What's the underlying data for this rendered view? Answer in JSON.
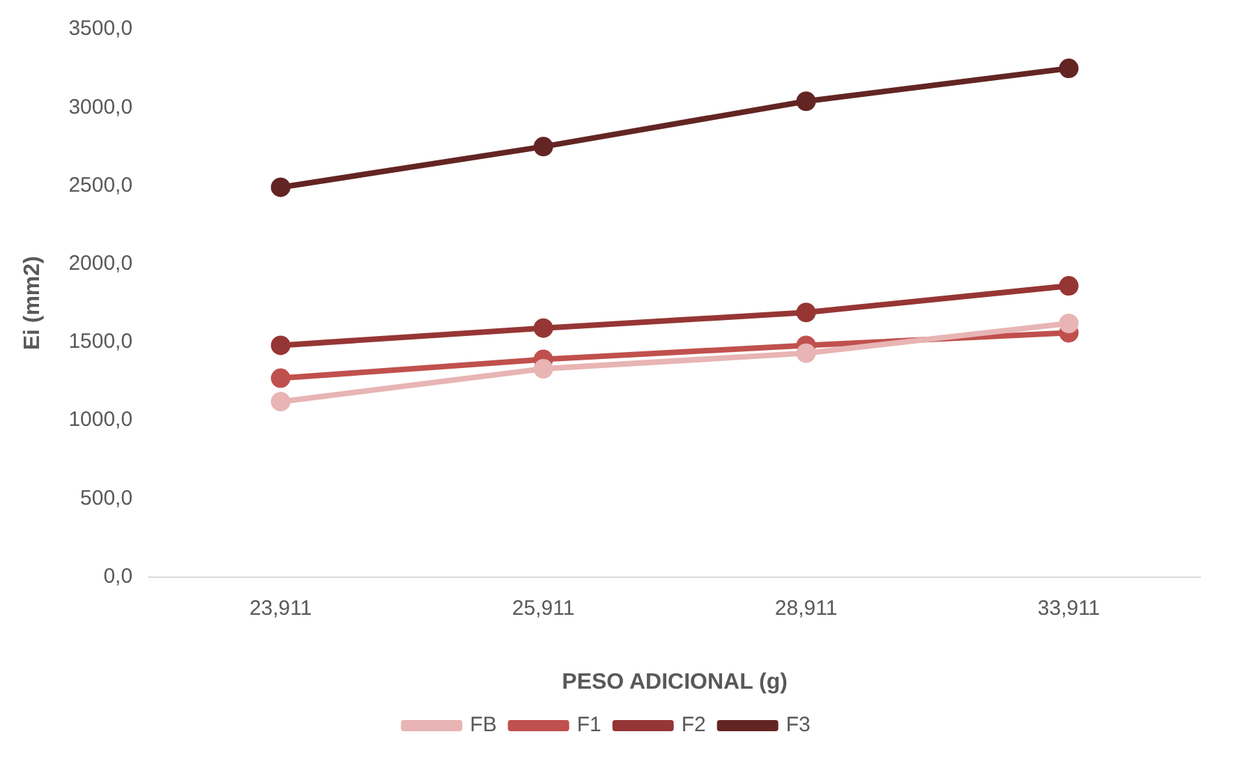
{
  "chart_data": {
    "type": "line",
    "xlabel": "PESO ADICIONAL (g)",
    "ylabel": "Ei (mm2)",
    "categories": [
      "23,911",
      "25,911",
      "28,911",
      "33,911"
    ],
    "ylim": [
      0,
      3500
    ],
    "yticks": [
      {
        "value": 0,
        "label": "0,0"
      },
      {
        "value": 500,
        "label": "500,0"
      },
      {
        "value": 1000,
        "label": "1000,0"
      },
      {
        "value": 1500,
        "label": "1500,0"
      },
      {
        "value": 2000,
        "label": "2000,0"
      },
      {
        "value": 2500,
        "label": "2500,0"
      },
      {
        "value": 3000,
        "label": "3000,0"
      },
      {
        "value": 3500,
        "label": "3500,0"
      }
    ],
    "grid": false,
    "legend": "bottom",
    "marker": "circle",
    "line_style": "solid",
    "series": [
      {
        "name": "FB",
        "color": "#e8b4b4",
        "values": [
          1120,
          1330,
          1430,
          1620
        ]
      },
      {
        "name": "F1",
        "color": "#c0504d",
        "values": [
          1270,
          1390,
          1480,
          1560
        ]
      },
      {
        "name": "F2",
        "color": "#963634",
        "values": [
          1480,
          1590,
          1690,
          1860
        ]
      },
      {
        "name": "F3",
        "color": "#632523",
        "values": [
          2490,
          2750,
          3040,
          3250
        ]
      }
    ]
  }
}
